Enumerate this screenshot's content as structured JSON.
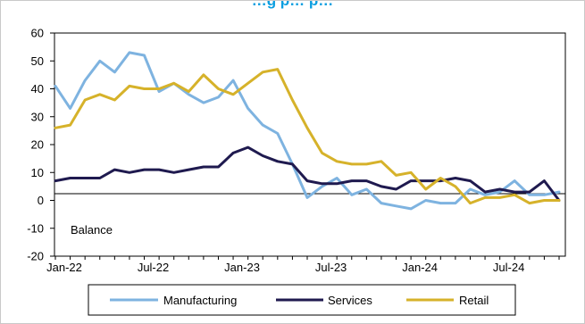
{
  "chart_data": {
    "type": "line",
    "title": "…g p… p…",
    "annotation": "Balance",
    "ylim": [
      -20,
      60
    ],
    "yticks": [
      -20,
      -10,
      0,
      10,
      20,
      30,
      40,
      50,
      60
    ],
    "xtick_labels": [
      "Jan-22",
      "Jul-22",
      "Jan-23",
      "Jul-23",
      "Jan-24",
      "Jul-24"
    ],
    "x": [
      "Jan-22",
      "Feb-22",
      "Mar-22",
      "Apr-22",
      "May-22",
      "Jun-22",
      "Jul-22",
      "Aug-22",
      "Sep-22",
      "Oct-22",
      "Nov-22",
      "Dec-22",
      "Jan-23",
      "Feb-23",
      "Mar-23",
      "Apr-23",
      "May-23",
      "Jun-23",
      "Jul-23",
      "Aug-23",
      "Sep-23",
      "Oct-23",
      "Nov-23",
      "Dec-23",
      "Jan-24",
      "Feb-24",
      "Mar-24",
      "Apr-24",
      "May-24",
      "Jun-24",
      "Jul-24",
      "Aug-24",
      "Sep-24",
      "Oct-24",
      "Nov-24"
    ],
    "grid": false,
    "legend_position": "bottom",
    "series": [
      {
        "name": "Manufacturing",
        "color": "#7eb3e0",
        "values": [
          41,
          33,
          43,
          50,
          46,
          53,
          52,
          39,
          42,
          38,
          35,
          37,
          43,
          33,
          27,
          24,
          13,
          1,
          5,
          8,
          2,
          4,
          -1,
          -2,
          -3,
          0,
          -1,
          -1,
          4,
          2,
          3,
          7,
          2,
          2,
          3
        ]
      },
      {
        "name": "Services",
        "color": "#1f1a4f",
        "values": [
          7,
          8,
          8,
          8,
          11,
          10,
          11,
          11,
          10,
          11,
          12,
          12,
          17,
          19,
          16,
          14,
          13,
          7,
          6,
          6,
          7,
          7,
          5,
          4,
          7,
          7,
          7,
          8,
          7,
          3,
          4,
          3,
          3,
          7,
          0
        ]
      },
      {
        "name": "Retail",
        "color": "#d6b22a",
        "values": [
          26,
          27,
          36,
          38,
          36,
          41,
          40,
          40,
          42,
          39,
          45,
          40,
          38,
          42,
          46,
          47,
          36,
          26,
          17,
          14,
          13,
          13,
          14,
          9,
          10,
          4,
          8,
          5,
          -1,
          1,
          1,
          2,
          -1,
          0,
          0
        ]
      }
    ]
  }
}
